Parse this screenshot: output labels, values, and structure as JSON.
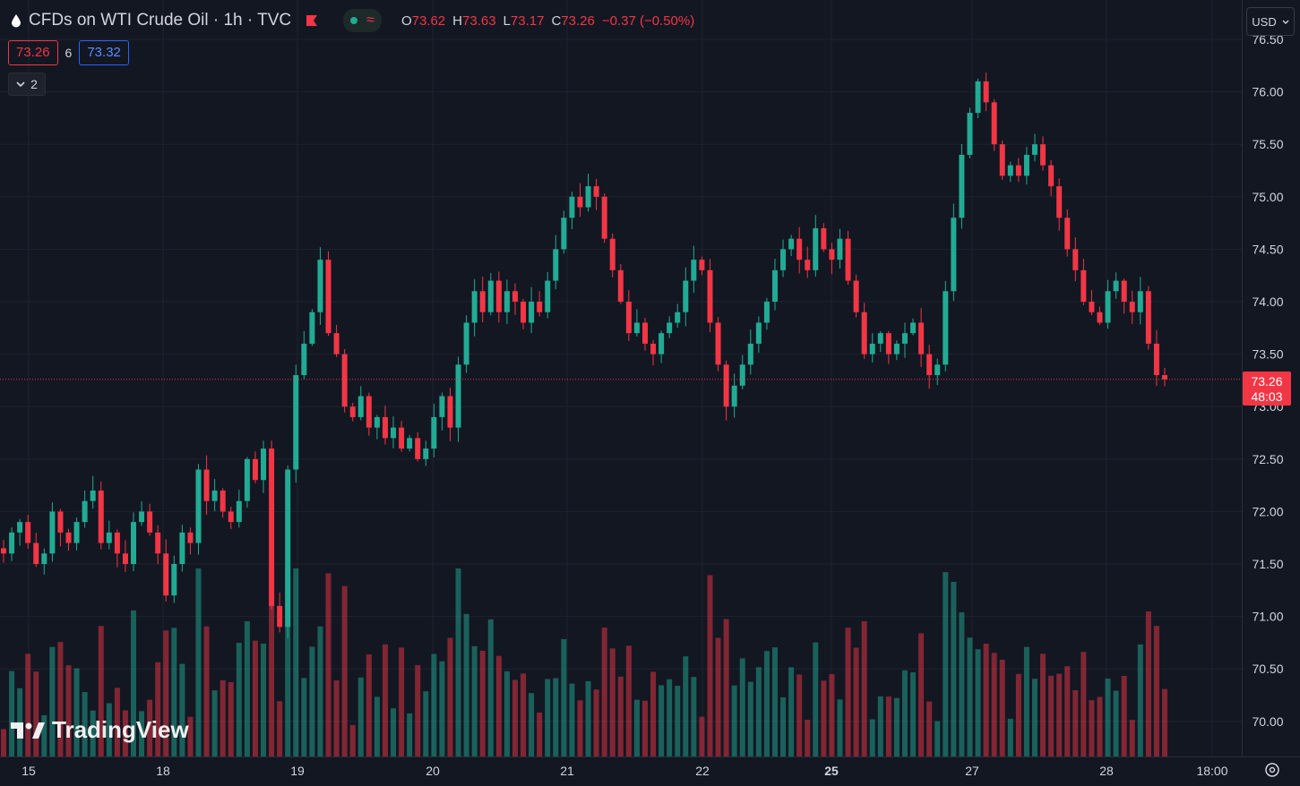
{
  "header": {
    "symbol_title": "CFDs on WTI Crude Oil · 1h · TVC",
    "ohlc": [
      {
        "label": "O",
        "value": "73.62"
      },
      {
        "label": "H",
        "value": "73.63"
      },
      {
        "label": "L",
        "value": "73.17"
      },
      {
        "label": "C",
        "value": "73.26"
      }
    ],
    "change": "−0.37 (−0.50%)",
    "bid": "73.26",
    "spread": "6",
    "ask": "73.32",
    "indicators_count": "2",
    "currency": "USD"
  },
  "price_axis": {
    "ticks": [
      "76.50",
      "76.00",
      "75.50",
      "75.00",
      "74.50",
      "74.00",
      "73.50",
      "73.00",
      "72.50",
      "72.00",
      "71.50",
      "71.00",
      "70.50",
      "70.00"
    ],
    "last_price": "73.26",
    "countdown": "48:03"
  },
  "time_axis": {
    "ticks": [
      "15",
      "18",
      "19",
      "20",
      "21",
      "22",
      "25",
      "27",
      "28",
      "18:00"
    ]
  },
  "watermark": "TradingView",
  "colors": {
    "up": "#22ab94",
    "down": "#f23645",
    "background": "#131722",
    "grid": "#1f2330"
  },
  "chart_data": {
    "type": "candlestick",
    "title": "CFDs on WTI Crude Oil · 1h · TVC",
    "y_range": [
      69.7,
      76.55
    ],
    "bars_approx_close_path": [
      71.6,
      71.8,
      71.9,
      71.7,
      71.5,
      71.6,
      72.0,
      71.8,
      71.7,
      71.9,
      72.1,
      72.2,
      71.7,
      71.8,
      71.6,
      71.5,
      71.9,
      72.0,
      71.8,
      71.6,
      71.2,
      71.5,
      71.8,
      71.7,
      72.4,
      72.1,
      72.2,
      72.0,
      71.9,
      72.1,
      72.5,
      72.3,
      72.6,
      71.1,
      70.9,
      72.4,
      73.3,
      73.6,
      73.9,
      74.4,
      73.7,
      73.5,
      73.0,
      72.9,
      73.1,
      72.8,
      72.9,
      72.7,
      72.8,
      72.6,
      72.7,
      72.5,
      72.6,
      72.9,
      73.1,
      72.8,
      73.4,
      73.8,
      74.1,
      73.9,
      74.2,
      73.9,
      74.1,
      74.0,
      73.8,
      74.0,
      73.9,
      74.2,
      74.5,
      74.8,
      75.0,
      74.9,
      75.1,
      75.0,
      74.6,
      74.3,
      74.0,
      73.7,
      73.8,
      73.6,
      73.5,
      73.7,
      73.8,
      73.9,
      74.2,
      74.4,
      74.3,
      73.8,
      73.4,
      73.0,
      73.2,
      73.4,
      73.6,
      73.8,
      74.0,
      74.3,
      74.5,
      74.6,
      74.4,
      74.3,
      74.7,
      74.5,
      74.4,
      74.6,
      74.2,
      73.9,
      73.5,
      73.6,
      73.7,
      73.5,
      73.6,
      73.7,
      73.8,
      73.5,
      73.3,
      73.4,
      74.1,
      74.8,
      75.4,
      75.8,
      76.1,
      75.9,
      75.5,
      75.2,
      75.3,
      75.2,
      75.4,
      75.5,
      75.3,
      75.1,
      74.8,
      74.5,
      74.3,
      74.0,
      73.9,
      73.8,
      74.1,
      74.2,
      74.0,
      73.9,
      74.1,
      73.6,
      73.3
    ],
    "last_close": 73.26
  }
}
